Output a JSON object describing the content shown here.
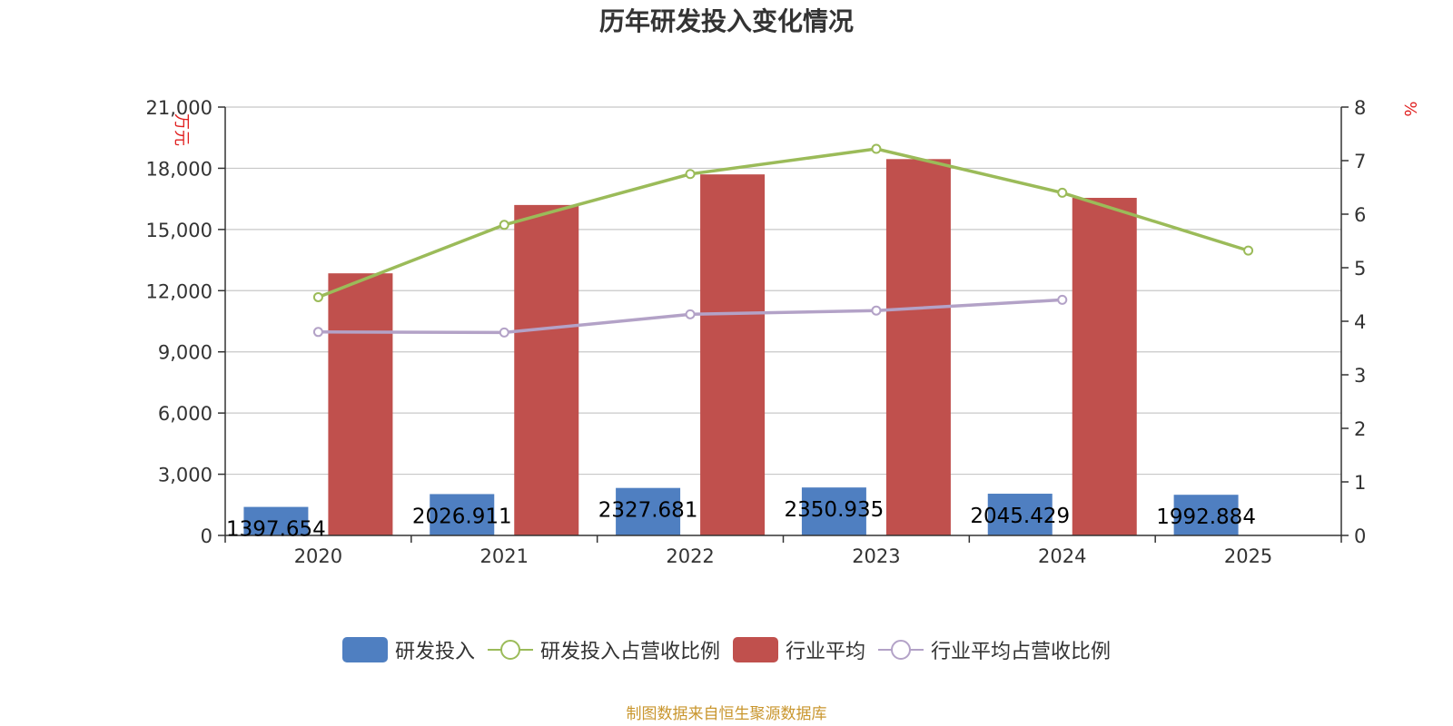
{
  "chart_data": {
    "type": "bar",
    "title": "历年研发投入变化情况",
    "categories": [
      "2020",
      "2021",
      "2022",
      "2023",
      "2024",
      "2025"
    ],
    "y_left": {
      "unit": "万元",
      "ylim": [
        0,
        21000
      ],
      "ticks": [
        0,
        3000,
        6000,
        9000,
        12000,
        15000,
        18000,
        21000
      ],
      "tick_labels": [
        "0",
        "3,000",
        "6,000",
        "9,000",
        "12,000",
        "15,000",
        "18,000",
        "21,000"
      ]
    },
    "y_right": {
      "unit": "%",
      "ylim": [
        0,
        8
      ],
      "ticks": [
        0,
        1,
        2,
        3,
        4,
        5,
        6,
        7,
        8
      ],
      "tick_labels": [
        "0",
        "1",
        "2",
        "3",
        "4",
        "5",
        "6",
        "7",
        "8"
      ]
    },
    "grid": true,
    "legend_position": "bottom-center",
    "series": [
      {
        "name": "研发投入",
        "kind": "bar",
        "axis": "left",
        "color": "#4f7fc1",
        "values": [
          1397.654,
          2026.911,
          2327.681,
          2350.935,
          2045.429,
          1992.884
        ],
        "labels": [
          "1397.654",
          "2026.911",
          "2327.681",
          "2350.935",
          "2045.429",
          "1992.884"
        ]
      },
      {
        "name": "研发投入占营收比例",
        "kind": "line",
        "axis": "right",
        "color": "#9bbb59",
        "values": [
          4.45,
          5.8,
          6.75,
          7.22,
          6.4,
          5.32
        ]
      },
      {
        "name": "行业平均",
        "kind": "bar",
        "axis": "left",
        "color": "#c0504d",
        "values": [
          12850,
          16200,
          17700,
          18450,
          16550,
          null
        ]
      },
      {
        "name": "行业平均占营收比例",
        "kind": "line",
        "axis": "right",
        "color": "#b3a2c7",
        "values": [
          3.8,
          3.79,
          4.13,
          4.2,
          4.4,
          null
        ]
      }
    ]
  },
  "source_note": "制图数据来自恒生聚源数据库"
}
